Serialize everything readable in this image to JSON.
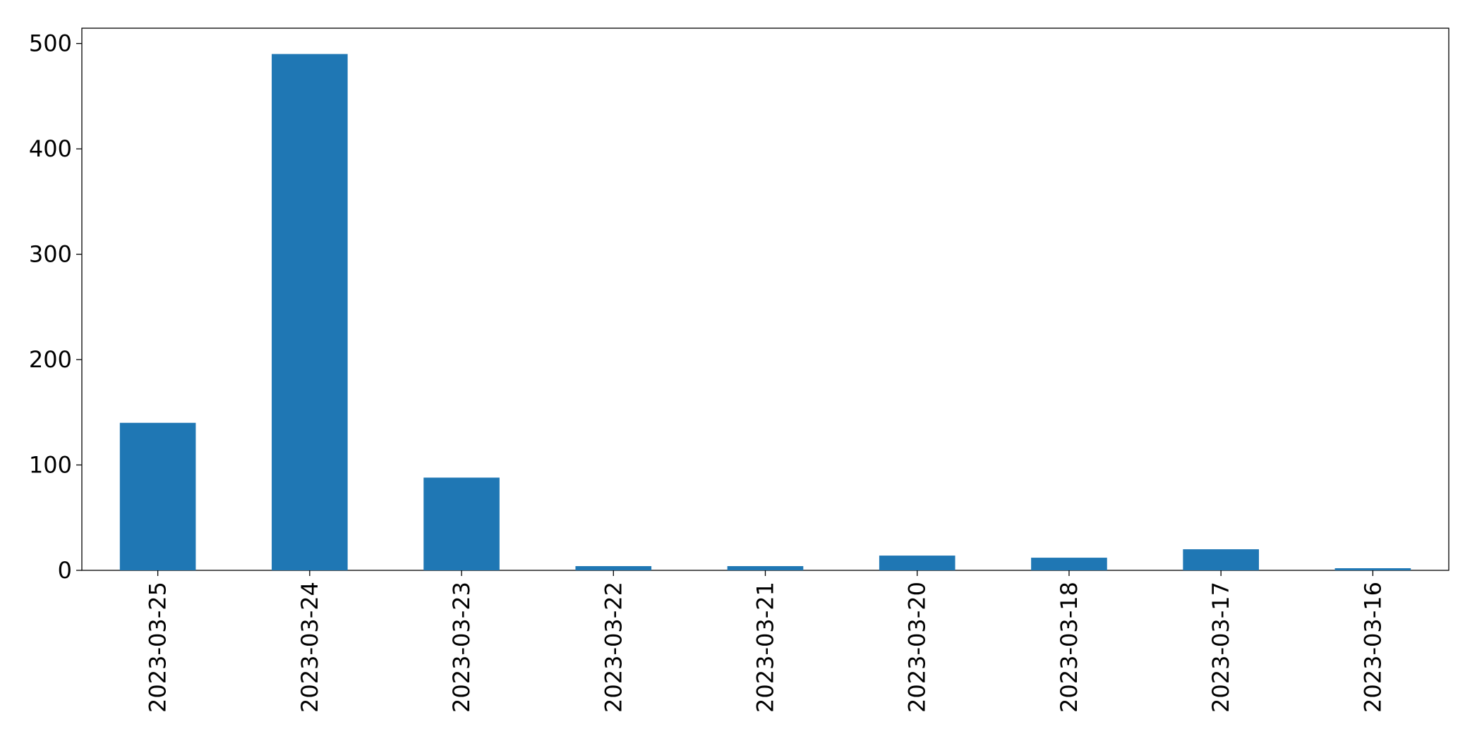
{
  "chart_data": {
    "type": "bar",
    "categories": [
      "2023-03-25",
      "2023-03-24",
      "2023-03-23",
      "2023-03-22",
      "2023-03-21",
      "2023-03-20",
      "2023-03-18",
      "2023-03-17",
      "2023-03-16"
    ],
    "values": [
      140,
      490,
      88,
      4,
      4,
      14,
      12,
      20,
      2
    ],
    "color": "#1f77b4",
    "ylim": [
      0,
      514.5
    ],
    "yticks": [
      0,
      100,
      200,
      300,
      400,
      500
    ],
    "grid": false
  }
}
